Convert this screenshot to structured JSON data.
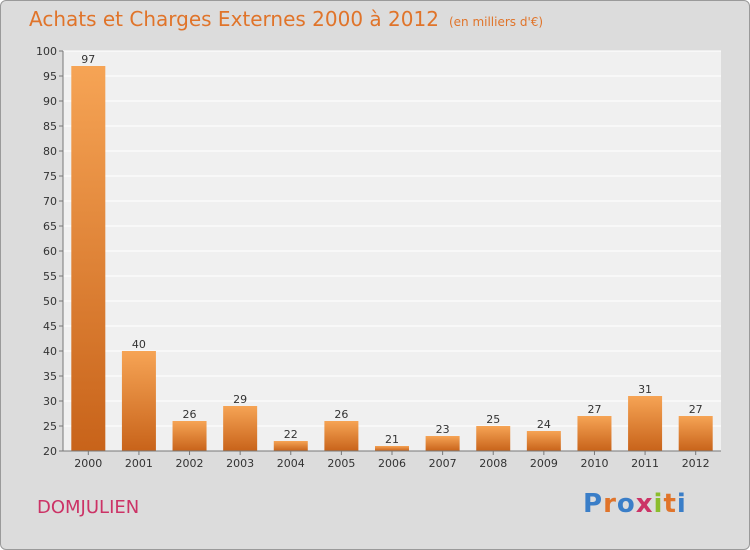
{
  "brand": {
    "name": "Proxiti",
    "letter_colors": [
      "#3a7ec8",
      "#e0742a",
      "#3a7ec8",
      "#cc3366",
      "#8bbd2d",
      "#e0742a",
      "#3a7ec8"
    ]
  },
  "place": "DOMJULIEN",
  "colors": {
    "title": "#e0742a",
    "place": "#cc3366",
    "bar_top": "#f6a455",
    "bar_bottom": "#c8631a",
    "background": "#dcdcdc",
    "plot": "#f0f0f0"
  },
  "chart_data": {
    "type": "bar",
    "title": "Achats et Charges Externes 2000 à 2012",
    "subtitle": "(en milliers d'€)",
    "xlabel": "",
    "ylabel": "",
    "categories": [
      "2000",
      "2001",
      "2002",
      "2003",
      "2004",
      "2005",
      "2006",
      "2007",
      "2008",
      "2009",
      "2010",
      "2011",
      "2012"
    ],
    "values": [
      97,
      40,
      26,
      29,
      22,
      26,
      21,
      23,
      25,
      24,
      27,
      31,
      27
    ],
    "ylim": [
      20,
      100
    ],
    "yticks": [
      20,
      25,
      30,
      35,
      40,
      45,
      50,
      55,
      60,
      65,
      70,
      75,
      80,
      85,
      90,
      95,
      100
    ],
    "grid": true,
    "legend": "none"
  }
}
